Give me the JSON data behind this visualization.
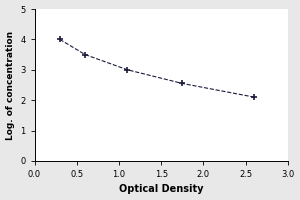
{
  "x": [
    0.3,
    0.6,
    1.1,
    1.75,
    2.6
  ],
  "y": [
    4.0,
    3.5,
    3.0,
    2.55,
    2.1
  ],
  "xlabel": "Optical Density",
  "ylabel": "Log. of concentration",
  "xlim": [
    0,
    3
  ],
  "ylim": [
    0,
    5
  ],
  "xticks": [
    0,
    0.5,
    1,
    1.5,
    2,
    2.5,
    3
  ],
  "yticks": [
    0,
    1,
    2,
    3,
    4,
    5
  ],
  "line_color": "#1a1a3a",
  "marker": "+",
  "marker_size": 5,
  "marker_linewidth": 1.2,
  "line_style": "--",
  "line_width": 0.8,
  "xlabel_fontsize": 7,
  "ylabel_fontsize": 6.5,
  "tick_fontsize": 6,
  "background_color": "#e8e8e8"
}
